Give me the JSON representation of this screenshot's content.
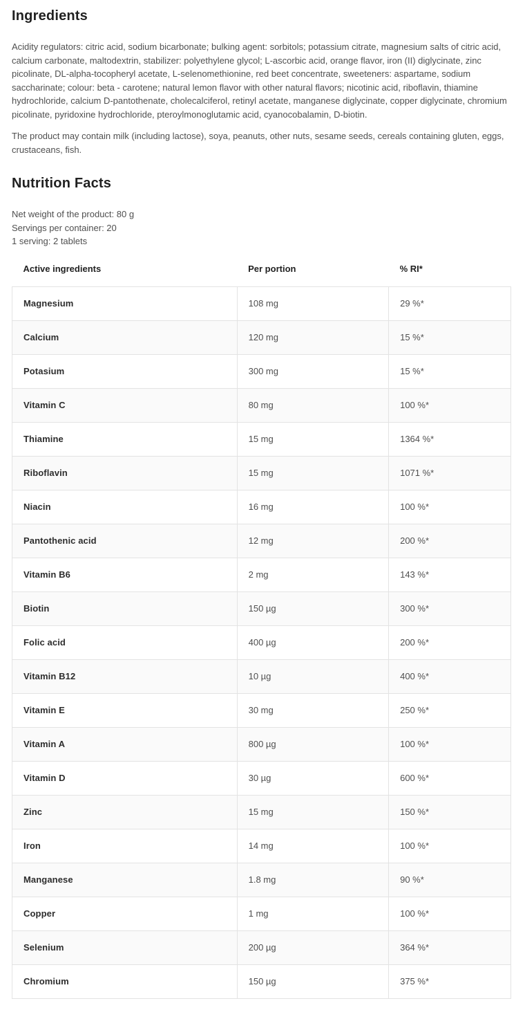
{
  "ingredients": {
    "title": "Ingredients",
    "text": "Acidity regulators: citric acid, sodium bicarbonate; bulking agent: sorbitols; potassium citrate, magnesium salts of citric acid, calcium carbonate, maltodextrin, stabilizer: polyethylene glycol; L-ascorbic acid, orange flavor, iron (II) diglycinate, zinc picolinate, DL-alpha-tocopheryl acetate, L-selenomethionine, red beet concentrate, sweeteners: aspartame, sodium saccharinate; colour: beta - carotene; natural lemon flavor with other natural flavors; nicotinic acid, riboflavin, thiamine hydrochloride, calcium D-pantothenate, cholecalciferol, retinyl acetate, manganese diglycinate, copper diglycinate, chromium picolinate, pyridoxine hydrochloride, pteroylmonoglutamic acid, cyanocobalamin, D-biotin.",
    "allergen_note": "The product may contain milk (including lactose), soya, peanuts, other nuts, sesame seeds, cereals containing gluten, eggs, crustaceans, fish."
  },
  "nutrition": {
    "title": "Nutrition Facts",
    "meta": {
      "net_weight": "Net weight of the product: 80 g",
      "servings": "Servings per container: 20",
      "serving_size": "1 serving: 2 tablets"
    },
    "table": {
      "headers": [
        "Active ingredients",
        "Per portion",
        "% RI*"
      ],
      "rows": [
        {
          "name": "Magnesium",
          "per_portion": "108 mg",
          "ri": "29 %*"
        },
        {
          "name": "Calcium",
          "per_portion": "120 mg",
          "ri": "15 %*"
        },
        {
          "name": "Potasium",
          "per_portion": "300 mg",
          "ri": "15 %*"
        },
        {
          "name": "Vitamin C",
          "per_portion": "80 mg",
          "ri": "100 %*"
        },
        {
          "name": "Thiamine",
          "per_portion": "15 mg",
          "ri": "1364 %*"
        },
        {
          "name": "Riboflavin",
          "per_portion": "15 mg",
          "ri": "1071 %*"
        },
        {
          "name": "Niacin",
          "per_portion": "16 mg",
          "ri": "100 %*"
        },
        {
          "name": "Pantothenic acid",
          "per_portion": "12 mg",
          "ri": "200 %*"
        },
        {
          "name": "Vitamin B6",
          "per_portion": "2 mg",
          "ri": "143 %*"
        },
        {
          "name": "Biotin",
          "per_portion": "150 µg",
          "ri": "300 %*"
        },
        {
          "name": "Folic acid",
          "per_portion": "400 µg",
          "ri": "200 %*"
        },
        {
          "name": "Vitamin B12",
          "per_portion": "10 µg",
          "ri": "400 %*"
        },
        {
          "name": "Vitamin E",
          "per_portion": "30 mg",
          "ri": "250 %*"
        },
        {
          "name": "Vitamin A",
          "per_portion": "800 µg",
          "ri": "100 %*"
        },
        {
          "name": "Vitamin D",
          "per_portion": "30 µg",
          "ri": "600 %*"
        },
        {
          "name": "Zinc",
          "per_portion": "15 mg",
          "ri": "150 %*"
        },
        {
          "name": "Iron",
          "per_portion": "14 mg",
          "ri": "100 %*"
        },
        {
          "name": "Manganese",
          "per_portion": "1.8 mg",
          "ri": "90 %*"
        },
        {
          "name": "Copper",
          "per_portion": "1 mg",
          "ri": "100 %*"
        },
        {
          "name": "Selenium",
          "per_portion": "200 µg",
          "ri": "364 %*"
        },
        {
          "name": "Chromium",
          "per_portion": "150 µg",
          "ri": "375 %*"
        }
      ]
    }
  },
  "colors": {
    "heading_text": "#212121",
    "body_text": "#4f4f4f",
    "table_border": "#e3e3e3",
    "row_alt_background": "#fafafa",
    "page_background": "#ffffff"
  }
}
